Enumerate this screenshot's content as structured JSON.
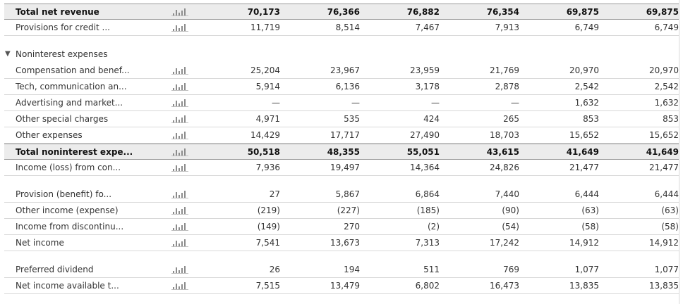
{
  "rows": [
    {
      "label": "Total net revenue",
      "bold": true,
      "values": [
        "70,173",
        "76,366",
        "76,882",
        "76,354",
        "69,875",
        "69,875"
      ]
    },
    {
      "label": "Provisions for credit ...",
      "values": [
        "11,719",
        "8,514",
        "7,467",
        "7,913",
        "6,749",
        "6,749"
      ]
    },
    {
      "spacer": true
    },
    {
      "label": "Noninterest expenses",
      "section": true,
      "toggle": "▼"
    },
    {
      "label": "Compensation and benef...",
      "values": [
        "25,204",
        "23,967",
        "23,959",
        "21,769",
        "20,970",
        "20,970"
      ]
    },
    {
      "label": "Tech, communication an...",
      "values": [
        "5,914",
        "6,136",
        "3,178",
        "2,878",
        "2,542",
        "2,542"
      ]
    },
    {
      "label": "Advertising and market...",
      "values": [
        "—",
        "—",
        "—",
        "—",
        "1,632",
        "1,632"
      ]
    },
    {
      "label": "Other special charges",
      "values": [
        "4,971",
        "535",
        "424",
        "265",
        "853",
        "853"
      ]
    },
    {
      "label": "Other expenses",
      "values": [
        "14,429",
        "17,717",
        "27,490",
        "18,703",
        "15,652",
        "15,652"
      ]
    },
    {
      "label": "Total noninterest expe...",
      "bold": true,
      "values": [
        "50,518",
        "48,355",
        "55,051",
        "43,615",
        "41,649",
        "41,649"
      ]
    },
    {
      "label": "Income (loss) from con...",
      "values": [
        "7,936",
        "19,497",
        "14,364",
        "24,826",
        "21,477",
        "21,477"
      ]
    },
    {
      "spacer": true
    },
    {
      "label": "Provision (benefit) fo...",
      "values": [
        "27",
        "5,867",
        "6,864",
        "7,440",
        "6,444",
        "6,444"
      ]
    },
    {
      "label": "Other income (expense)",
      "values": [
        "(219)",
        "(227)",
        "(185)",
        "(90)",
        "(63)",
        "(63)"
      ]
    },
    {
      "label": "Income from discontinu...",
      "values": [
        "(149)",
        "270",
        "(2)",
        "(54)",
        "(58)",
        "(58)"
      ]
    },
    {
      "label": "Net income",
      "values": [
        "7,541",
        "13,673",
        "7,313",
        "17,242",
        "14,912",
        "14,912"
      ]
    },
    {
      "spacer": true
    },
    {
      "label": "Preferred dividend",
      "values": [
        "26",
        "194",
        "511",
        "769",
        "1,077",
        "1,077"
      ]
    },
    {
      "label": "Net income available t...",
      "values": [
        "7,515",
        "13,479",
        "6,802",
        "16,473",
        "13,835",
        "13,835"
      ]
    }
  ],
  "sparkline_icon": "mini-bar-chart-icon",
  "colors": {
    "bold_row_bg": "#ececec",
    "divider": "#d8d8d8",
    "text": "#333333"
  }
}
